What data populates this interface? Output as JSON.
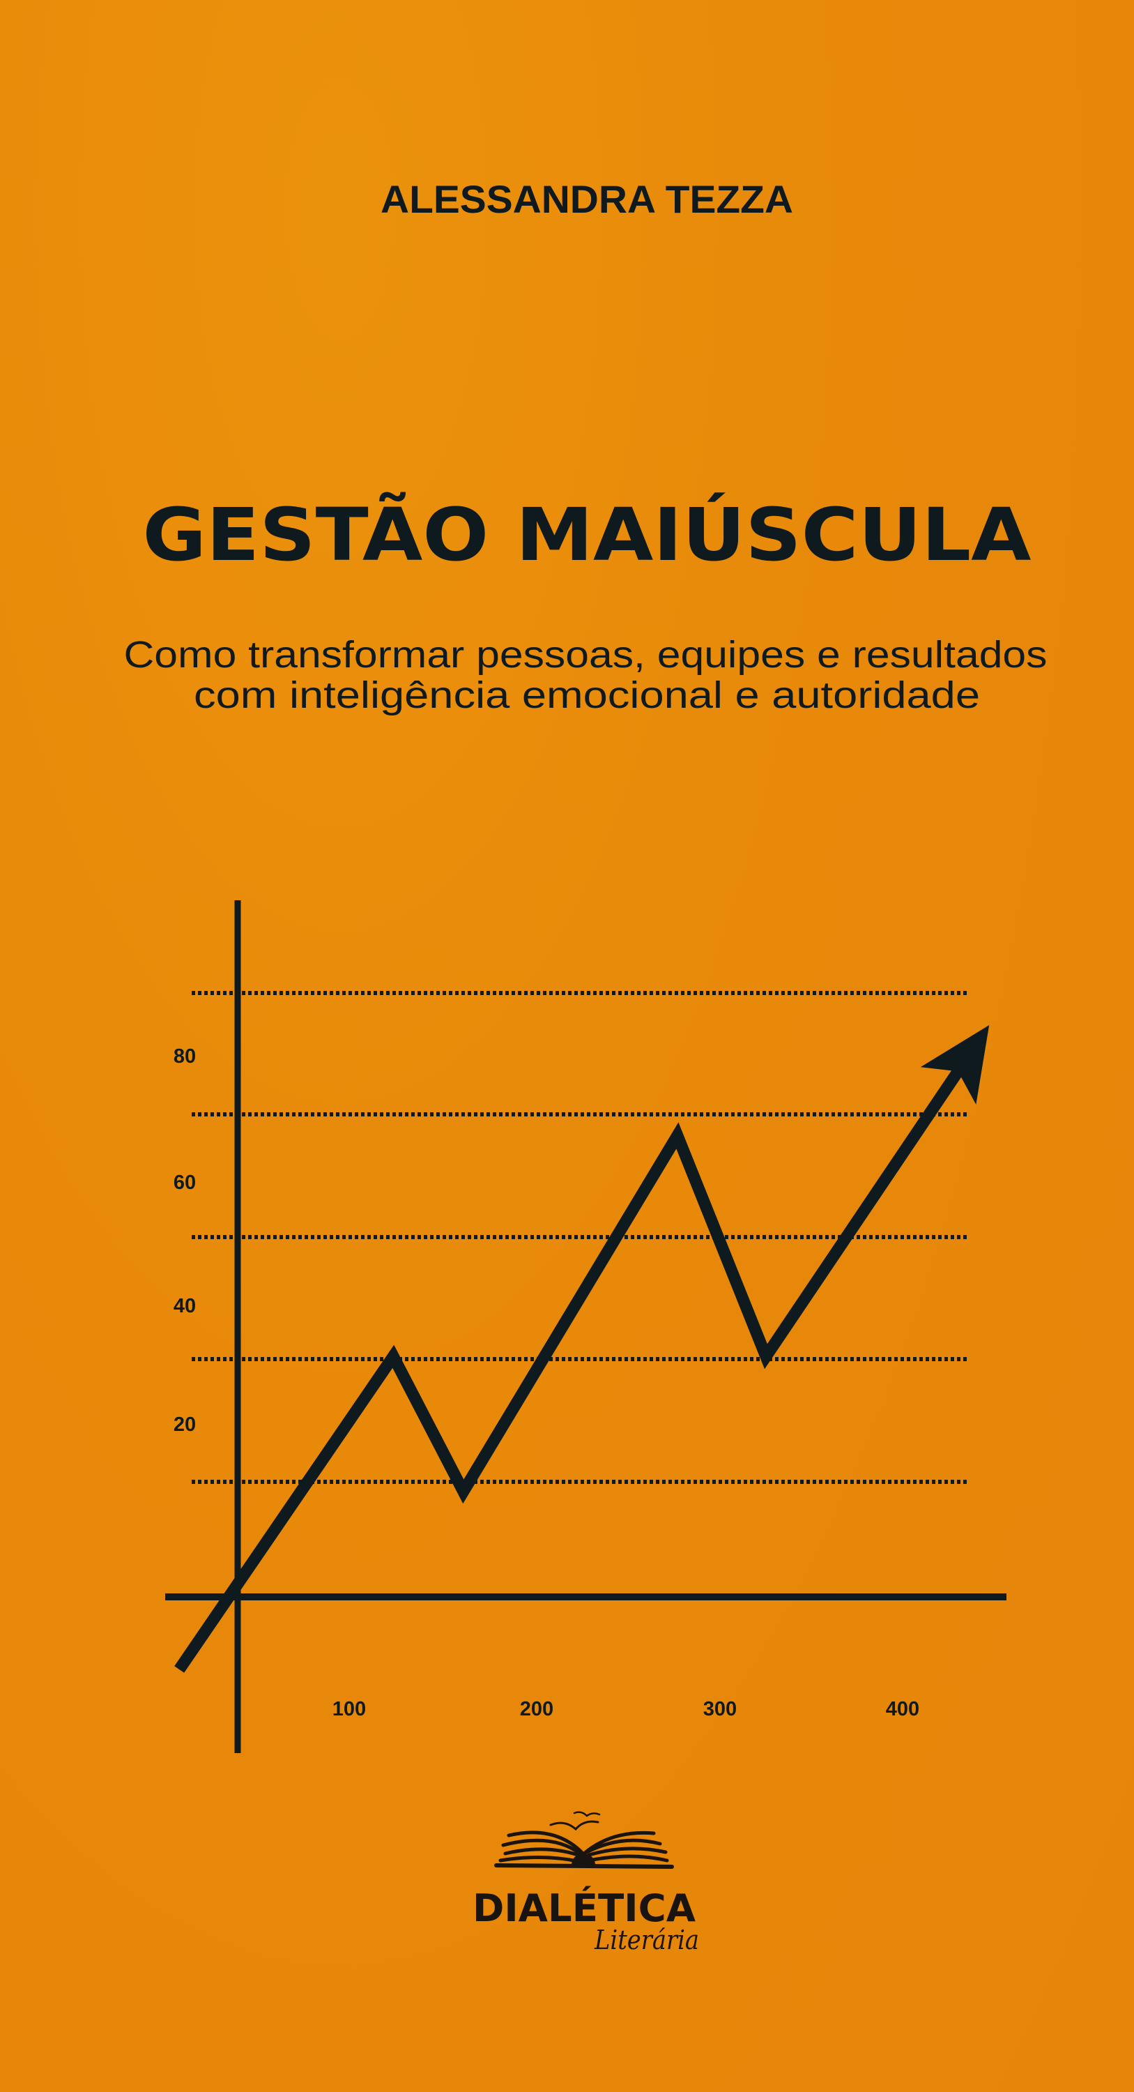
{
  "cover": {
    "author": "ALESSANDRA TEZZA",
    "title": "GESTÃO MAIÚSCULA",
    "subtitle_lines": [
      "Como transformar pessoas, equipes e resultados",
      "com inteligência emocional e autoridade"
    ],
    "background_color": "#e8890a",
    "ink_color": "#0f1a1f"
  },
  "publisher": {
    "name": "DIALÉTICA",
    "imprint": "Literária",
    "logo_icon": "open-book-with-birds-icon"
  },
  "chart_data": {
    "type": "line",
    "title": "",
    "xlabel": "",
    "ylabel": "",
    "x_ticks": [
      "100",
      "200",
      "300",
      "400"
    ],
    "y_ticks": [
      "20",
      "40",
      "60",
      "80"
    ],
    "grid": "dotted horizontal",
    "series": [
      {
        "x": [
          8,
          124,
          162,
          278,
          326,
          447
        ],
        "y": [
          -20,
          31,
          9,
          67,
          31,
          85
        ],
        "end_marker": "arrow"
      }
    ]
  }
}
